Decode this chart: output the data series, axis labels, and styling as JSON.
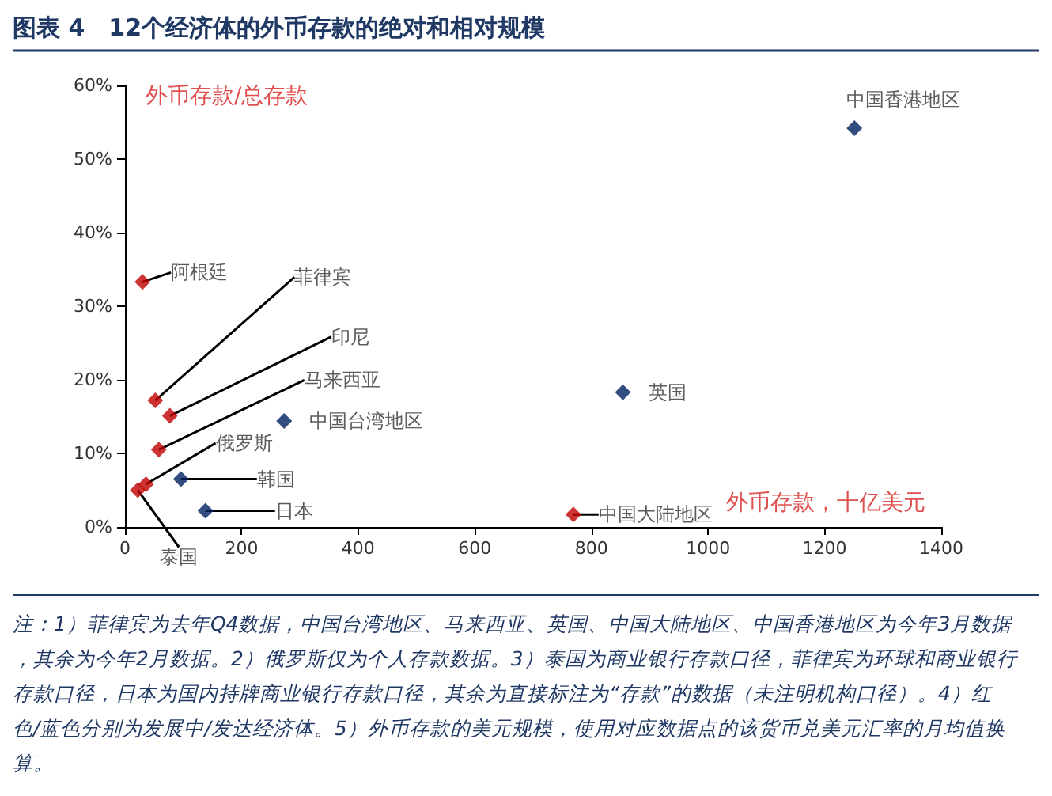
{
  "chart_data": {
    "type": "scatter",
    "title": "图表 4　12个经济体的外币存款的绝对和相对规模",
    "xlabel": "外币存款，十亿美元",
    "ylabel": "外币存款/总存款",
    "series": [
      {
        "color": "#c00000",
        "x": [
          30,
          52,
          77,
          58,
          36,
          22,
          769
        ],
        "values": [
          33.3,
          17.2,
          15.1,
          10.5,
          5.8,
          5.0,
          1.7
        ]
      },
      {
        "color": "#002060",
        "x": [
          1251,
          854,
          273,
          96,
          138
        ],
        "values": [
          54.2,
          18.3,
          14.4,
          6.5,
          2.2
        ]
      }
    ],
    "xlim": [
      0,
      1400
    ],
    "xticks": [
      0,
      200,
      400,
      600,
      800,
      1000,
      1200,
      1400
    ],
    "ylim": [
      0,
      60
    ],
    "yticks": [
      {
        "value": 0,
        "label": "0%"
      },
      {
        "value": 10,
        "label": "10%"
      },
      {
        "value": 20,
        "label": "20%"
      },
      {
        "value": 30,
        "label": "30%"
      },
      {
        "value": 40,
        "label": "40%"
      },
      {
        "value": 50,
        "label": "50%"
      },
      {
        "value": 60,
        "label": "60%"
      }
    ],
    "marker": "diamond",
    "grid": false,
    "annotations": [
      {
        "text": "阿根廷",
        "x": 30,
        "y": 33.3
      },
      {
        "text": "菲律宾",
        "x": 52,
        "y": 17.2
      },
      {
        "text": "印尼",
        "x": 77,
        "y": 15.1
      },
      {
        "text": "马来西亚",
        "x": 58,
        "y": 10.5
      },
      {
        "text": "俄罗斯",
        "x": 36,
        "y": 5.8
      },
      {
        "text": "泰国",
        "x": 22,
        "y": 5.0
      },
      {
        "text": "中国大陆地区",
        "x": 769,
        "y": 1.7
      },
      {
        "text": "中国香港地区",
        "x": 1251,
        "y": 54.2
      },
      {
        "text": "英国",
        "x": 854,
        "y": 18.3
      },
      {
        "text": "中国台湾地区",
        "x": 273,
        "y": 14.4
      },
      {
        "text": "韩国",
        "x": 96,
        "y": 6.5
      },
      {
        "text": "日本",
        "x": 138,
        "y": 2.2
      },
      "注：1）菲律宾为去年Q4数据，中国台湾地区、马来西亚、英国、中国大陆地区、中国香港地区为今年3月数据，其余为今年2月数据。2）俄罗斯仅为个人存款数据。3）泰国为商业银行存款口径，菲律宾为环球和商业银行存款口径，日本为国内持牌商业银行存款口径，其余为直接标注为“存款”的数据（未注明机构口径）。4）红色/蓝色分别为发展中/发达经济体。5）外币存款的美元规模，使用对应数据点的该货币兑美元汇率的月均值换算。"
    ]
  }
}
